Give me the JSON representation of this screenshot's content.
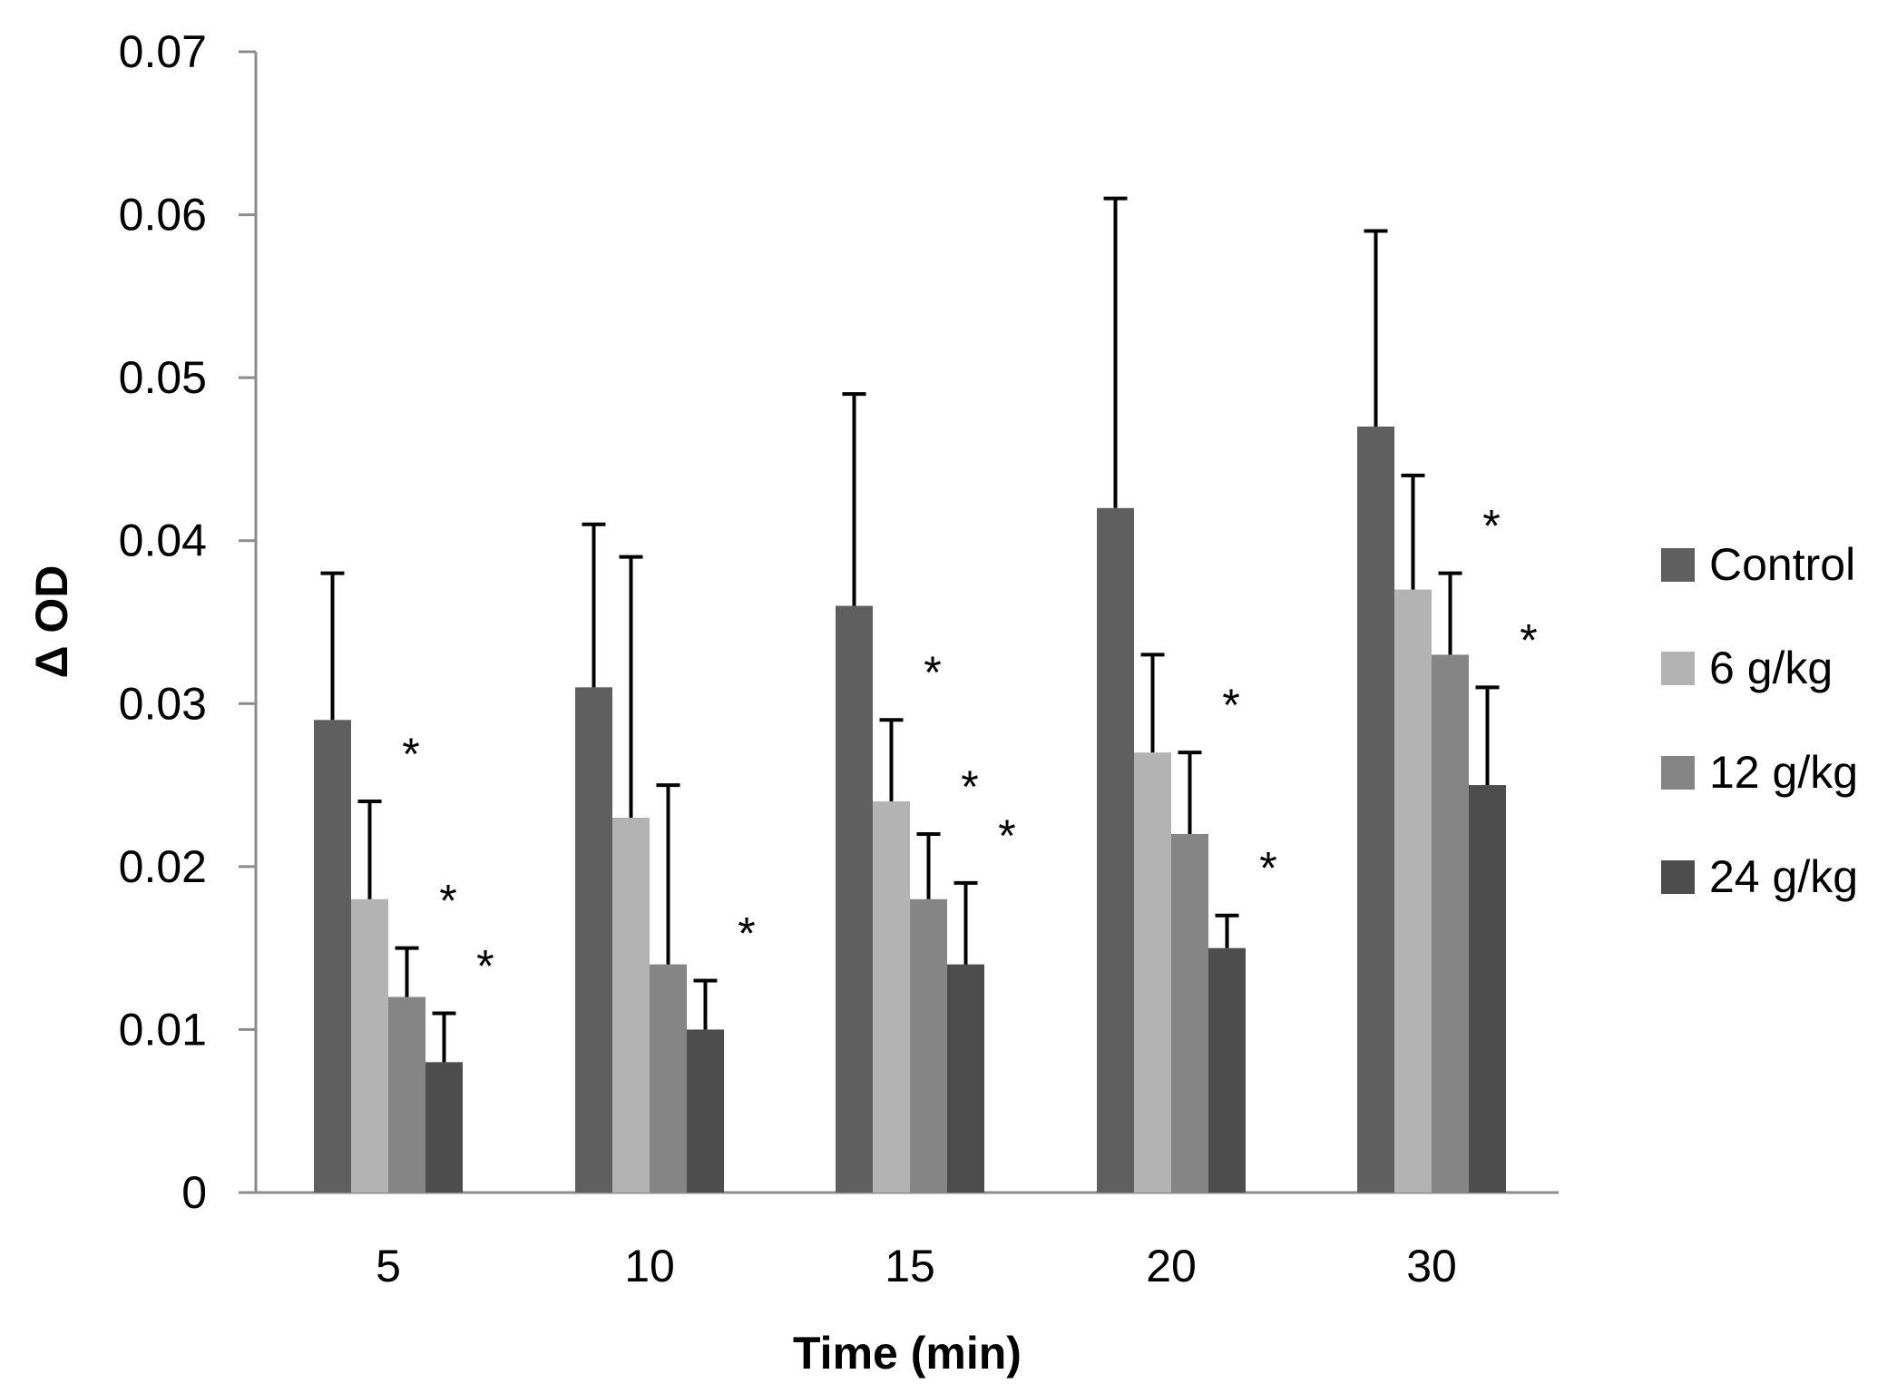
{
  "chart_data": {
    "type": "bar",
    "title": "",
    "xlabel": "Time (min)",
    "ylabel": "Δ OD",
    "ylim": [
      0,
      0.07
    ],
    "yticks": [
      0,
      0.01,
      0.02,
      0.03,
      0.04,
      0.05,
      0.06,
      0.07
    ],
    "ytick_labels": [
      "0",
      "0.01",
      "0.02",
      "0.03",
      "0.04",
      "0.05",
      "0.06",
      "0.07"
    ],
    "categories": [
      "5",
      "10",
      "15",
      "20",
      "30"
    ],
    "legend_position": "right",
    "grid": false,
    "series": [
      {
        "name": "Control",
        "color": "#5f5f5f",
        "values": [
          0.029,
          0.031,
          0.036,
          0.042,
          0.047
        ],
        "errors": [
          0.009,
          0.01,
          0.013,
          0.019,
          0.012
        ],
        "significant": [
          false,
          false,
          false,
          false,
          false
        ]
      },
      {
        "name": "6 g/kg",
        "color": "#b3b3b3",
        "values": [
          0.018,
          0.023,
          0.024,
          0.027,
          0.037
        ],
        "errors": [
          0.006,
          0.016,
          0.005,
          0.006,
          0.007
        ],
        "significant": [
          true,
          false,
          true,
          false,
          false
        ]
      },
      {
        "name": "12 g/kg",
        "color": "#858585",
        "values": [
          0.012,
          0.014,
          0.018,
          0.022,
          0.033
        ],
        "errors": [
          0.003,
          0.011,
          0.004,
          0.005,
          0.005
        ],
        "significant": [
          true,
          false,
          true,
          true,
          true
        ]
      },
      {
        "name": "24 g/kg",
        "color": "#4d4d4d",
        "values": [
          0.008,
          0.01,
          0.014,
          0.015,
          0.025
        ],
        "errors": [
          0.003,
          0.003,
          0.005,
          0.002,
          0.006
        ],
        "significant": [
          true,
          true,
          true,
          true,
          true
        ]
      }
    ],
    "significance_marker": "*"
  }
}
